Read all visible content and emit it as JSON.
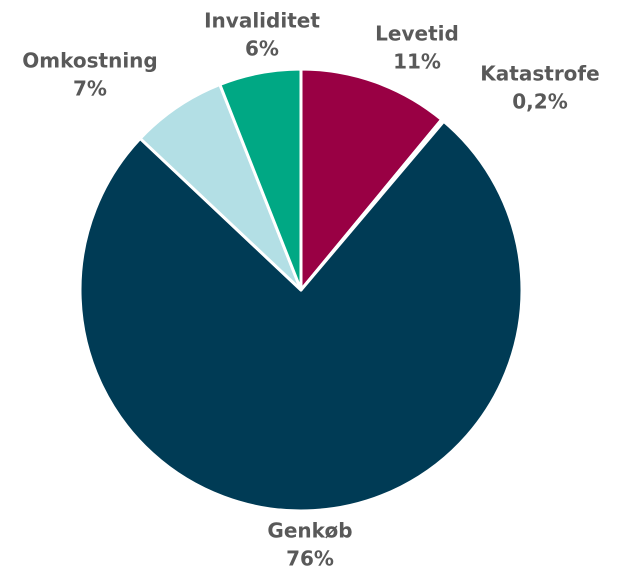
{
  "chart_data": {
    "type": "pie",
    "categories": [
      "Levetid",
      "Katastrofe",
      "Genkøb",
      "Omkostning",
      "Invaliditet"
    ],
    "values": [
      11,
      0.2,
      76,
      7,
      6
    ],
    "value_labels": [
      "11%",
      "0,2%",
      "76%",
      "7%",
      "6%"
    ],
    "colors": [
      "#990044",
      "#6e1a3c",
      "#003b55",
      "#b3dfe5",
      "#00a884"
    ]
  }
}
